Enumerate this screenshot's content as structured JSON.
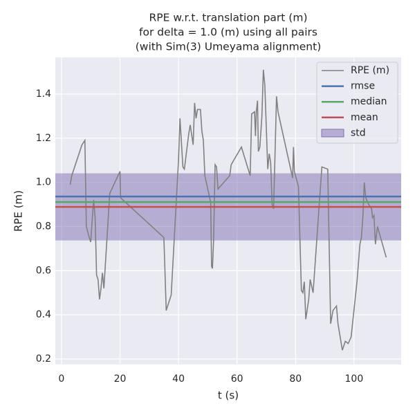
{
  "chart_data": {
    "type": "line",
    "title": [
      "RPE w.r.t. translation part (m)",
      "for delta = 1.0 (m) using all pairs",
      "(with Sim(3) Umeyama alignment)"
    ],
    "xlabel": "t (s)",
    "ylabel": "RPE (m)",
    "xlim": [
      -2.1,
      116.1
    ],
    "ylim": [
      0.175,
      1.566
    ],
    "xticks": [
      0,
      20,
      40,
      60,
      80,
      100
    ],
    "yticks": [
      0.2,
      0.4,
      0.6,
      0.8,
      {
        "value": 1,
        "label": "1.0"
      },
      1.2,
      1.4
    ],
    "grid": true,
    "legend": "upper right",
    "series": [
      {
        "name": "RPE (m)",
        "color": "#808080",
        "x": [
          3.0,
          3.5,
          7.0,
          8.0,
          8.5,
          9.5,
          10.0,
          10.5,
          11.0,
          11.5,
          12.0,
          12.5,
          13.0,
          13.5,
          14.0,
          14.5,
          16.5,
          20.0,
          20.2,
          35.0,
          35.8,
          37.5,
          40.0,
          40.5,
          41.5,
          42.0,
          43.5,
          44.0,
          45.0,
          45.5,
          46.0,
          46.5,
          47.5,
          48.0,
          48.5,
          49.0,
          51.0,
          51.3,
          51.6,
          52.0,
          52.5,
          53.0,
          53.5,
          57.5,
          58.0,
          61.5,
          64.5,
          65.0,
          66.0,
          66.3,
          66.6,
          67.0,
          67.3,
          67.8,
          68.5,
          69.0,
          69.5,
          70.5,
          71.0,
          71.5,
          72.0,
          72.5,
          73.5,
          74.0,
          79.0,
          79.3,
          79.6,
          81.0,
          82.0,
          82.5,
          83.0,
          83.5,
          84.5,
          85.0,
          86.0,
          89.0,
          91.0,
          92.0,
          92.8,
          94.0,
          94.5,
          96.0,
          97.0,
          98.0,
          99.0,
          101.0,
          102.0,
          102.5,
          103.0,
          103.5,
          104.0,
          105.0,
          106.0,
          106.3,
          106.8,
          107.3,
          108.0,
          111.0
        ],
        "values": [
          0.99,
          1.03,
          1.17,
          1.19,
          0.8,
          0.75,
          0.73,
          0.83,
          0.92,
          0.84,
          0.58,
          0.56,
          0.47,
          0.52,
          0.59,
          0.52,
          0.95,
          1.05,
          0.93,
          0.75,
          0.42,
          0.49,
          1.1,
          1.29,
          1.07,
          1.06,
          1.22,
          1.26,
          1.17,
          1.36,
          1.29,
          1.33,
          1.33,
          1.23,
          1.19,
          1.03,
          0.91,
          0.62,
          0.61,
          0.74,
          1.08,
          1.07,
          0.97,
          1.03,
          1.08,
          1.16,
          1.03,
          1.31,
          1.32,
          1.21,
          1.32,
          1.37,
          1.14,
          1.16,
          1.3,
          1.51,
          1.44,
          1.06,
          1.13,
          1.09,
          0.9,
          0.88,
          1.39,
          1.32,
          1.02,
          1.16,
          1.05,
          0.98,
          0.51,
          0.5,
          0.55,
          0.38,
          0.47,
          0.56,
          0.5,
          1.07,
          1.06,
          0.36,
          0.42,
          0.44,
          0.36,
          0.24,
          0.28,
          0.27,
          0.3,
          0.55,
          0.72,
          0.75,
          0.84,
          1.0,
          0.93,
          0.9,
          0.88,
          0.84,
          0.85,
          0.72,
          0.8,
          0.66
        ]
      }
    ],
    "reference_lines": [
      {
        "name": "rmse",
        "color": "#4c72b0",
        "value": 0.936
      },
      {
        "name": "median",
        "color": "#55a868",
        "value": 0.911
      },
      {
        "name": "mean",
        "color": "#c44e52",
        "value": 0.889
      }
    ],
    "band": {
      "name": "std",
      "color": "#8172b2",
      "value": 0.152
    }
  }
}
